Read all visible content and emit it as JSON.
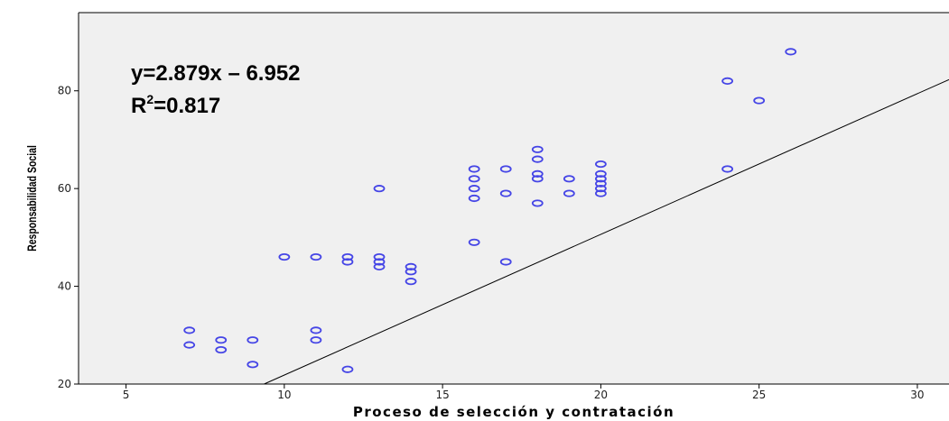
{
  "chart_data": {
    "type": "scatter",
    "title": "",
    "xlabel": "Proceso de selección y contratación",
    "ylabel": "Responsabilidad Social",
    "xlim": [
      3.5,
      31
    ],
    "ylim": [
      20,
      96
    ],
    "xticks": [
      5,
      10,
      15,
      20,
      25,
      30
    ],
    "yticks": [
      20,
      40,
      60,
      80
    ],
    "grid": false,
    "colors": {
      "plot_bg": "#f0f0f0",
      "marker": "#4545e6",
      "line": "#000000",
      "frame": "#000000"
    },
    "points": [
      [
        7,
        31
      ],
      [
        7,
        28
      ],
      [
        8,
        29
      ],
      [
        8,
        27
      ],
      [
        9,
        29
      ],
      [
        9,
        24
      ],
      [
        10,
        46
      ],
      [
        11,
        46
      ],
      [
        11,
        31
      ],
      [
        11,
        29
      ],
      [
        12,
        46
      ],
      [
        12,
        45
      ],
      [
        12,
        23
      ],
      [
        13,
        60
      ],
      [
        13,
        46
      ],
      [
        13,
        45
      ],
      [
        13,
        44
      ],
      [
        14,
        44
      ],
      [
        14,
        43
      ],
      [
        14,
        41
      ],
      [
        16,
        64
      ],
      [
        16,
        62
      ],
      [
        16,
        60
      ],
      [
        16,
        58
      ],
      [
        16,
        49
      ],
      [
        17,
        64
      ],
      [
        17,
        59
      ],
      [
        17,
        45
      ],
      [
        18,
        68
      ],
      [
        18,
        66
      ],
      [
        18,
        63
      ],
      [
        18,
        62
      ],
      [
        18,
        57
      ],
      [
        19,
        62
      ],
      [
        19,
        59
      ],
      [
        20,
        65
      ],
      [
        20,
        63
      ],
      [
        20,
        62
      ],
      [
        20,
        61
      ],
      [
        20,
        60
      ],
      [
        20,
        59
      ],
      [
        24,
        82
      ],
      [
        24,
        64
      ],
      [
        25,
        78
      ],
      [
        26,
        88
      ]
    ],
    "fit": {
      "slope": 2.879,
      "intercept": -6.952
    },
    "annotations": {
      "equation": "y=2.879x – 6.952",
      "r2_prefix": "R",
      "r2_sup": "2",
      "r2_suffix": "=0.817"
    }
  }
}
